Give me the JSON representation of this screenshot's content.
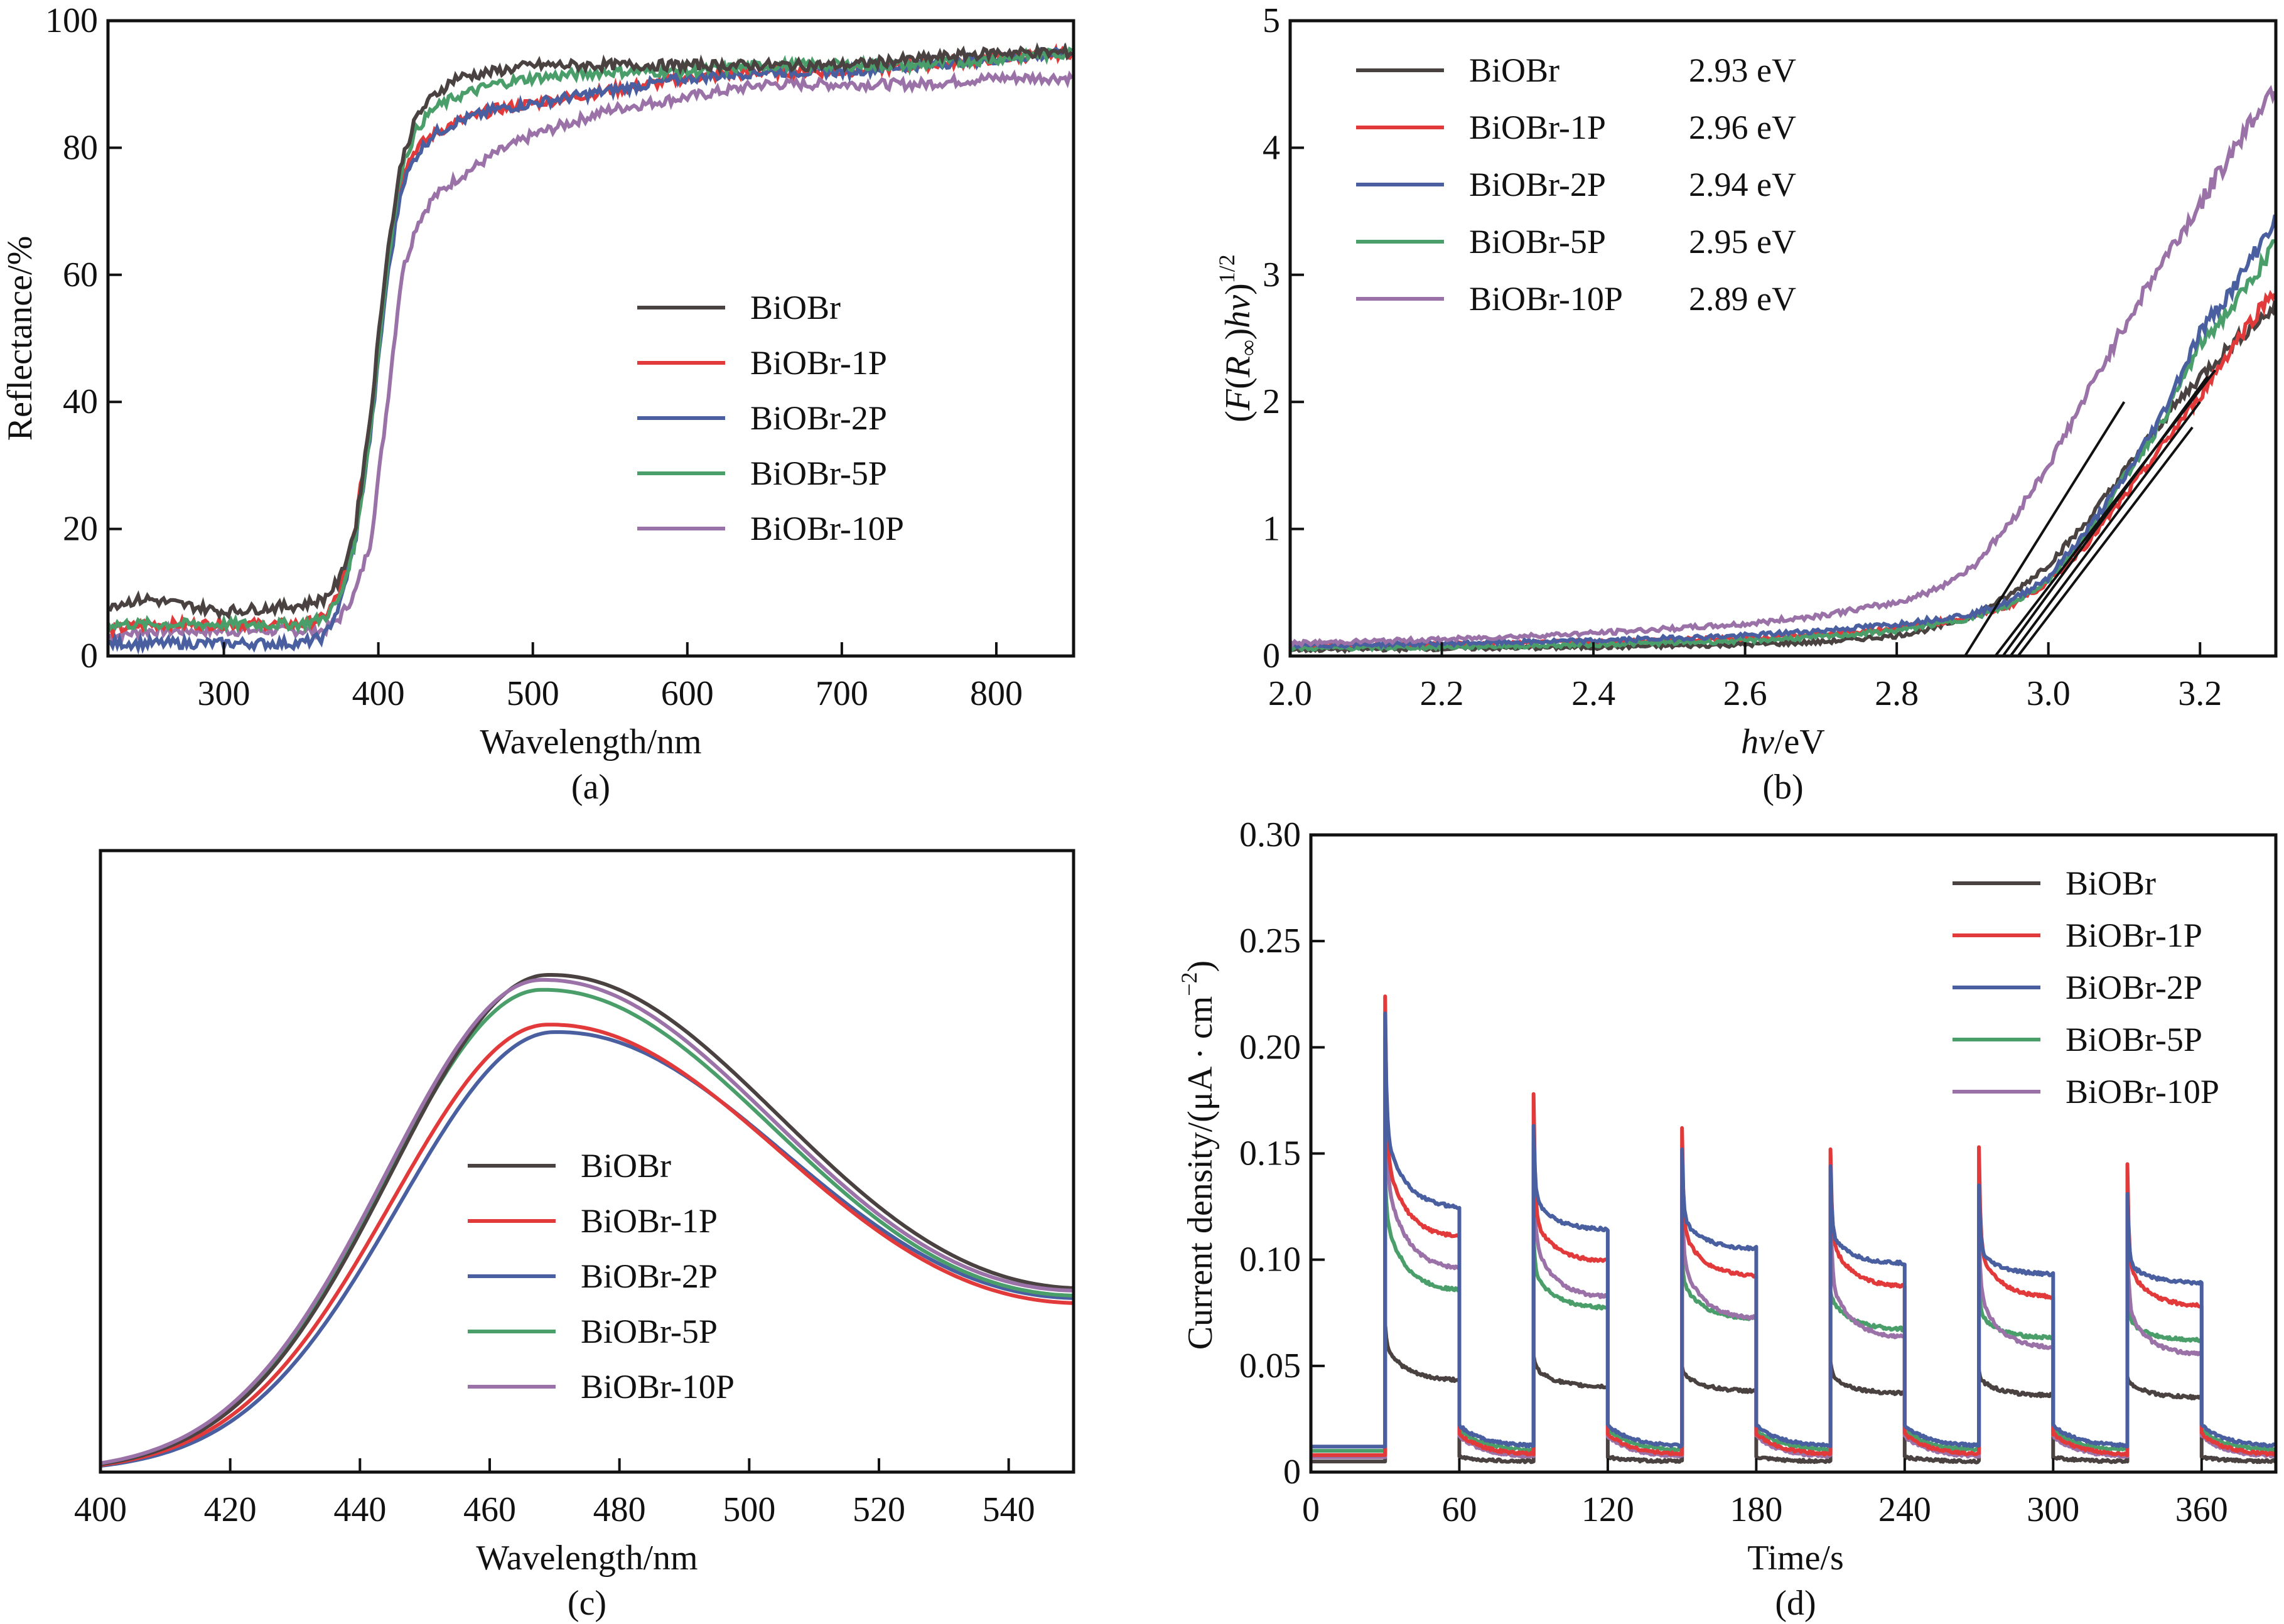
{
  "colors": {
    "BiOBr": "#4a4240",
    "BiOBr-1P": "#e23a3a",
    "BiOBr-2P": "#4a5fa0",
    "BiOBr-5P": "#4a9e6a",
    "BiOBr-10P": "#9a72a8",
    "tangent": "#111111"
  },
  "chart_data": [
    {
      "id": "a",
      "type": "line",
      "caption": "(a)",
      "title": "",
      "xlabel": "Wavelength/nm",
      "ylabel": "Reflectance/%",
      "xlim": [
        225,
        850
      ],
      "ylim": [
        0,
        100
      ],
      "xticks": [
        300,
        400,
        500,
        600,
        700,
        800
      ],
      "yticks": [
        0,
        20,
        40,
        60,
        80,
        100
      ],
      "grid": false,
      "legend_position": "center-right",
      "series": [
        {
          "name": "BiOBr",
          "x": [
            225,
            250,
            300,
            350,
            365,
            375,
            385,
            395,
            405,
            415,
            425,
            435,
            450,
            475,
            500,
            550,
            600,
            650,
            700,
            750,
            800,
            850
          ],
          "y": [
            8,
            9,
            7,
            8,
            9,
            12,
            20,
            38,
            62,
            78,
            85,
            88,
            91,
            92,
            93,
            93,
            93,
            93,
            93,
            94,
            95,
            95
          ]
        },
        {
          "name": "BiOBr-1P",
          "x": [
            225,
            250,
            300,
            350,
            365,
            375,
            385,
            395,
            405,
            415,
            425,
            435,
            450,
            475,
            500,
            550,
            600,
            650,
            700,
            750,
            800,
            850
          ],
          "y": [
            4,
            5,
            5,
            5,
            6,
            10,
            20,
            38,
            60,
            76,
            80,
            82,
            84,
            86,
            87,
            89,
            91,
            92,
            92,
            93,
            94,
            95
          ]
        },
        {
          "name": "BiOBr-2P",
          "x": [
            225,
            250,
            300,
            350,
            365,
            375,
            385,
            395,
            405,
            415,
            425,
            435,
            450,
            475,
            500,
            550,
            600,
            650,
            700,
            750,
            800,
            850
          ],
          "y": [
            2,
            2,
            2,
            2,
            3,
            8,
            18,
            35,
            58,
            74,
            79,
            82,
            84,
            86,
            87,
            89,
            91,
            92,
            92,
            93,
            94,
            95
          ]
        },
        {
          "name": "BiOBr-5P",
          "x": [
            225,
            250,
            300,
            350,
            365,
            375,
            385,
            395,
            405,
            415,
            425,
            435,
            450,
            475,
            500,
            550,
            600,
            650,
            700,
            750,
            800,
            850
          ],
          "y": [
            5,
            5,
            5,
            5,
            6,
            9,
            18,
            36,
            60,
            77,
            83,
            86,
            88,
            90,
            91,
            92,
            92,
            93,
            93,
            93,
            94,
            95
          ]
        },
        {
          "name": "BiOBr-10P",
          "x": [
            225,
            250,
            300,
            350,
            365,
            375,
            385,
            395,
            405,
            415,
            425,
            435,
            450,
            475,
            500,
            550,
            600,
            650,
            700,
            750,
            800,
            850
          ],
          "y": [
            3,
            4,
            4,
            4,
            4,
            6,
            10,
            18,
            38,
            60,
            68,
            72,
            75,
            79,
            82,
            86,
            88,
            90,
            90,
            90,
            91,
            91
          ]
        }
      ]
    },
    {
      "id": "b",
      "type": "line",
      "caption": "(b)",
      "title": "",
      "xlabel": "hν/eV",
      "xlabel_italic": "hν",
      "xlabel_unit": "/eV",
      "ylabel": "(F(R∞)hν)^1/2",
      "xlim": [
        2.0,
        3.3
      ],
      "ylim": [
        0,
        5
      ],
      "xticks": [
        2.0,
        2.2,
        2.4,
        2.6,
        2.8,
        3.0,
        3.2
      ],
      "yticks": [
        0,
        1,
        2,
        3,
        4,
        5
      ],
      "grid": false,
      "legend_position": "top-left",
      "band_gaps": [
        {
          "name": "BiOBr",
          "value": "2.93 eV"
        },
        {
          "name": "BiOBr-1P",
          "value": "2.96 eV"
        },
        {
          "name": "BiOBr-2P",
          "value": "2.94 eV"
        },
        {
          "name": "BiOBr-5P",
          "value": "2.95 eV"
        },
        {
          "name": "BiOBr-10P",
          "value": "2.89 eV"
        }
      ],
      "series": [
        {
          "name": "BiOBr",
          "x": [
            2.0,
            2.2,
            2.4,
            2.6,
            2.7,
            2.8,
            2.85,
            2.9,
            2.95,
            3.0,
            3.05,
            3.1,
            3.15,
            3.2,
            3.25,
            3.3
          ],
          "y": [
            0.05,
            0.06,
            0.07,
            0.09,
            0.11,
            0.16,
            0.22,
            0.32,
            0.48,
            0.72,
            1.05,
            1.45,
            1.85,
            2.2,
            2.5,
            2.75
          ]
        },
        {
          "name": "BiOBr-1P",
          "x": [
            2.0,
            2.2,
            2.4,
            2.6,
            2.7,
            2.8,
            2.85,
            2.9,
            2.95,
            3.0,
            3.05,
            3.1,
            3.15,
            3.2,
            3.25,
            3.3
          ],
          "y": [
            0.08,
            0.09,
            0.11,
            0.14,
            0.17,
            0.22,
            0.26,
            0.31,
            0.4,
            0.58,
            0.88,
            1.25,
            1.65,
            2.05,
            2.5,
            2.9
          ]
        },
        {
          "name": "BiOBr-2P",
          "x": [
            2.0,
            2.2,
            2.4,
            2.6,
            2.7,
            2.8,
            2.85,
            2.9,
            2.95,
            3.0,
            3.05,
            3.1,
            3.15,
            3.2,
            3.25,
            3.3
          ],
          "y": [
            0.08,
            0.1,
            0.12,
            0.16,
            0.2,
            0.25,
            0.29,
            0.33,
            0.43,
            0.62,
            0.98,
            1.4,
            1.9,
            2.55,
            2.95,
            3.45
          ]
        },
        {
          "name": "BiOBr-5P",
          "x": [
            2.0,
            2.2,
            2.4,
            2.6,
            2.7,
            2.8,
            2.85,
            2.9,
            2.95,
            3.0,
            3.05,
            3.1,
            3.15,
            3.2,
            3.25,
            3.3
          ],
          "y": [
            0.06,
            0.07,
            0.09,
            0.12,
            0.15,
            0.2,
            0.25,
            0.3,
            0.4,
            0.6,
            0.95,
            1.4,
            1.85,
            2.45,
            2.8,
            3.25
          ]
        },
        {
          "name": "BiOBr-10P",
          "x": [
            2.0,
            2.2,
            2.4,
            2.6,
            2.7,
            2.8,
            2.85,
            2.9,
            2.95,
            3.0,
            3.05,
            3.1,
            3.15,
            3.2,
            3.25,
            3.3
          ],
          "y": [
            0.1,
            0.13,
            0.18,
            0.25,
            0.32,
            0.42,
            0.52,
            0.7,
            1.05,
            1.5,
            2.05,
            2.6,
            3.1,
            3.55,
            4.05,
            4.5
          ]
        }
      ],
      "tangents": [
        {
          "name": "BiOBr",
          "x": [
            2.93,
            3.22
          ],
          "y": [
            0,
            2.25
          ]
        },
        {
          "name": "BiOBr-1P",
          "x": [
            2.96,
            3.19
          ],
          "y": [
            0,
            1.8
          ]
        },
        {
          "name": "BiOBr-2P",
          "x": [
            2.94,
            3.21
          ],
          "y": [
            0,
            2.2
          ]
        },
        {
          "name": "BiOBr-5P",
          "x": [
            2.95,
            3.2
          ],
          "y": [
            0,
            2.0
          ]
        },
        {
          "name": "BiOBr-10P",
          "x": [
            2.89,
            3.1
          ],
          "y": [
            0,
            2.0
          ]
        }
      ]
    },
    {
      "id": "c",
      "type": "line",
      "caption": "(c)",
      "title": "",
      "xlabel": "Wavelength/nm",
      "ylabel": "",
      "xlim": [
        400,
        550
      ],
      "ylim": [
        0,
        1.25
      ],
      "xticks": [
        400,
        420,
        440,
        460,
        480,
        500,
        520,
        540
      ],
      "yticks": [],
      "grid": false,
      "legend_position": "center",
      "series": [
        {
          "name": "BiOBr",
          "peak_x": 469,
          "peak_y": 1.0,
          "end_y": 0.37
        },
        {
          "name": "BiOBr-1P",
          "peak_x": 469,
          "peak_y": 0.9,
          "end_y": 0.34
        },
        {
          "name": "BiOBr-2P",
          "peak_x": 470,
          "peak_y": 0.885,
          "end_y": 0.35
        },
        {
          "name": "BiOBr-5P",
          "peak_x": 468,
          "peak_y": 0.97,
          "end_y": 0.355
        },
        {
          "name": "BiOBr-10P",
          "peak_x": 468,
          "peak_y": 0.99,
          "end_y": 0.365
        }
      ]
    },
    {
      "id": "d",
      "type": "line",
      "caption": "(d)",
      "title": "",
      "xlabel": "Time/s",
      "ylabel": "Current density/(μA·cm⁻²)",
      "xlim": [
        0,
        390
      ],
      "ylim": [
        0,
        0.3
      ],
      "xticks": [
        0,
        60,
        120,
        180,
        240,
        300,
        360
      ],
      "yticks": [
        0,
        0.05,
        0.1,
        0.15,
        0.2,
        0.25,
        0.3
      ],
      "ytick_labels": [
        "0",
        "0.05",
        "0.10",
        "0.15",
        "0.20",
        "0.25",
        "0.30"
      ],
      "grid": false,
      "legend_position": "top-right",
      "light_on_times": [
        30,
        90,
        150,
        210,
        270,
        330
      ],
      "light_off_times": [
        60,
        120,
        180,
        240,
        300,
        360
      ],
      "series": [
        {
          "name": "BiOBr",
          "dark": 0.005,
          "peaks": [
            0.07,
            0.055,
            0.05,
            0.052,
            0.048,
            0.045
          ],
          "on_start": [
            0.06,
            0.05,
            0.047,
            0.046,
            0.044,
            0.043
          ],
          "on_end": [
            0.043,
            0.04,
            0.038,
            0.037,
            0.036,
            0.035
          ]
        },
        {
          "name": "BiOBr-1P",
          "dark": 0.008,
          "peaks": [
            0.224,
            0.178,
            0.162,
            0.152,
            0.153,
            0.145
          ],
          "on_start": [
            0.15,
            0.12,
            0.115,
            0.11,
            0.105,
            0.098
          ],
          "on_end": [
            0.11,
            0.099,
            0.092,
            0.087,
            0.082,
            0.078
          ]
        },
        {
          "name": "BiOBr-2P",
          "dark": 0.012,
          "peaks": [
            0.216,
            0.163,
            0.152,
            0.144,
            0.135,
            0.131
          ],
          "on_start": [
            0.16,
            0.13,
            0.12,
            0.112,
            0.104,
            0.099
          ],
          "on_end": [
            0.124,
            0.114,
            0.105,
            0.098,
            0.093,
            0.089
          ]
        },
        {
          "name": "BiOBr-5P",
          "dark": 0.01,
          "peaks": [
            0.14,
            0.11,
            0.1,
            0.085,
            0.09,
            0.085
          ],
          "on_start": [
            0.12,
            0.095,
            0.09,
            0.082,
            0.075,
            0.072
          ],
          "on_end": [
            0.085,
            0.077,
            0.072,
            0.067,
            0.063,
            0.062
          ]
        },
        {
          "name": "BiOBr-10P",
          "dark": 0.007,
          "peaks": [
            0.205,
            0.155,
            0.135,
            0.13,
            0.118,
            0.113
          ],
          "on_start": [
            0.14,
            0.11,
            0.1,
            0.09,
            0.085,
            0.078
          ],
          "on_end": [
            0.095,
            0.082,
            0.072,
            0.063,
            0.058,
            0.055
          ]
        }
      ]
    }
  ],
  "legend_names": [
    "BiOBr",
    "BiOBr-1P",
    "BiOBr-2P",
    "BiOBr-5P",
    "BiOBr-10P"
  ]
}
